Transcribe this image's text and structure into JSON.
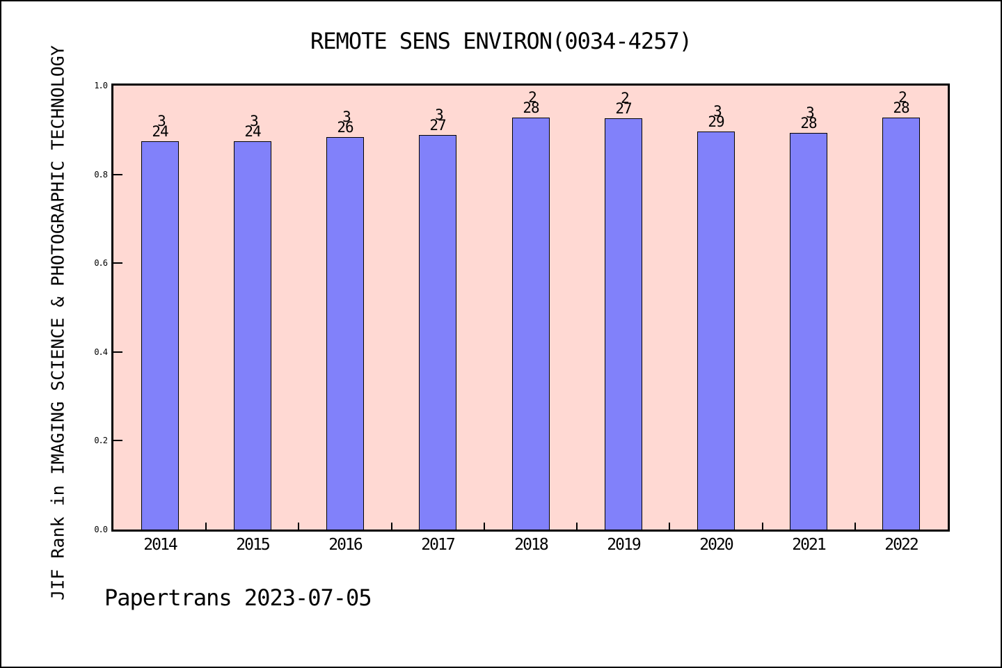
{
  "footer": {
    "text": "Papertrans 2023-07-05"
  },
  "colors": {
    "bar_fill": "#8181fa",
    "bar_edge": "#000000",
    "plot_background": "#ffd9d3",
    "frame": "#000000",
    "page_background": "#ffffff",
    "text": "#000000"
  },
  "chart_data": {
    "type": "bar",
    "title": "REMOTE SENS ENVIRON(0034-4257)",
    "xlabel": "",
    "ylabel": "JIF Rank in IMAGING SCIENCE & PHOTOGRAPHIC TECHNOLOGY",
    "categories": [
      "2014",
      "2015",
      "2016",
      "2017",
      "2018",
      "2019",
      "2020",
      "2021",
      "2022"
    ],
    "values": [
      0.875,
      0.875,
      0.8846,
      0.8889,
      0.9286,
      0.9259,
      0.8966,
      0.8929,
      0.9286
    ],
    "bar_annotations": [
      {
        "rank": "3",
        "total": "24"
      },
      {
        "rank": "3",
        "total": "24"
      },
      {
        "rank": "3",
        "total": "26"
      },
      {
        "rank": "3",
        "total": "27"
      },
      {
        "rank": "2",
        "total": "28"
      },
      {
        "rank": "2",
        "total": "27"
      },
      {
        "rank": "3",
        "total": "29"
      },
      {
        "rank": "3",
        "total": "28"
      },
      {
        "rank": "2",
        "total": "28"
      }
    ],
    "ylim": [
      0.0,
      1.0
    ],
    "ytick_labels": [
      "1.0",
      "0.8",
      "0.6",
      "0.4",
      "0.2",
      "0.0"
    ],
    "ytick_values": [
      1.0,
      0.8,
      0.6,
      0.4,
      0.2,
      0.0
    ],
    "grid": false,
    "legend": null
  }
}
